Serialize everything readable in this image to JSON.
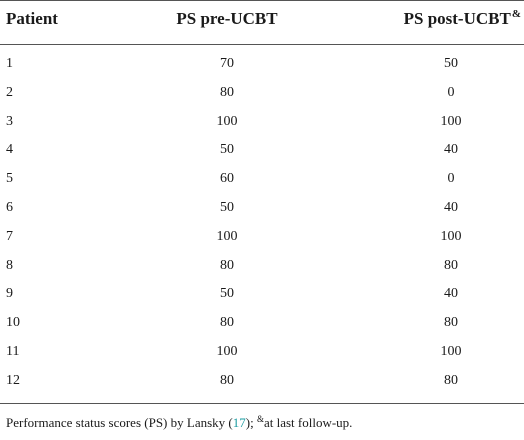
{
  "table": {
    "headers": {
      "patient": "Patient",
      "ps_pre": "PS pre-UCBT",
      "ps_post": "PS post-UCBT",
      "ps_post_mark": "&"
    },
    "rows": [
      {
        "patient": "1",
        "pre": "70",
        "post": "50"
      },
      {
        "patient": "2",
        "pre": "80",
        "post": "0"
      },
      {
        "patient": "3",
        "pre": "100",
        "post": "100"
      },
      {
        "patient": "4",
        "pre": "50",
        "post": "40"
      },
      {
        "patient": "5",
        "pre": "60",
        "post": "0"
      },
      {
        "patient": "6",
        "pre": "50",
        "post": "40"
      },
      {
        "patient": "7",
        "pre": "100",
        "post": "100"
      },
      {
        "patient": "8",
        "pre": "80",
        "post": "80"
      },
      {
        "patient": "9",
        "pre": "50",
        "post": "40"
      },
      {
        "patient": "10",
        "pre": "80",
        "post": "80"
      },
      {
        "patient": "11",
        "pre": "100",
        "post": "100"
      },
      {
        "patient": "12",
        "pre": "80",
        "post": "80"
      }
    ]
  },
  "footnote": {
    "text_before": "Performance status scores (PS) by Lansky (",
    "ref": "17",
    "text_middle": "); ",
    "mark": "&",
    "text_after": "at last follow-up."
  },
  "colors": {
    "reference_link": "#1a9ba0",
    "rule": "#555555"
  }
}
